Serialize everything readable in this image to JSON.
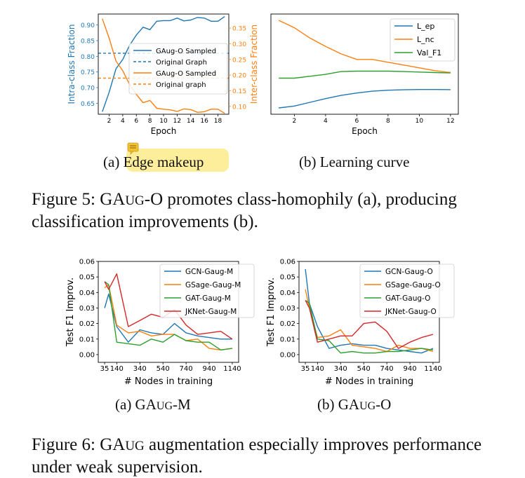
{
  "colors": {
    "blue": "#1f77b4",
    "orange": "#ff7f0e",
    "green": "#2ca02c",
    "red": "#d62728",
    "highlight": "#fdee9c",
    "note_icon": "#f2c230"
  },
  "figure5": {
    "caption": {
      "prefix": "Figure 5: GA",
      "smallcaps": "UG",
      "rest": "-O promotes class-homophily (a), producing classification improvements (b)."
    },
    "panel_a": {
      "subcaption": {
        "label": "(a) ",
        "text": "Edge makeup"
      },
      "chart_data": {
        "type": "line",
        "xlabel": "Epoch",
        "ylabel_left": "Intra-class Fraction",
        "ylabel_right": "Inter-class Fraction",
        "x_ticks": [
          "2",
          "4",
          "6",
          "8",
          "10",
          "12",
          "14",
          "16",
          "18"
        ],
        "y_left_ticks": [
          "0.65",
          "0.70",
          "0.75",
          "0.80",
          "0.85",
          "0.90"
        ],
        "y_right_ticks": [
          "0.10",
          "0.15",
          "0.20",
          "0.25",
          "0.30",
          "0.35"
        ],
        "xlim": [
          0.4,
          19.6
        ],
        "ylim_left": [
          0.615,
          0.935
        ],
        "ylim_right": [
          0.075,
          0.395
        ],
        "series": [
          {
            "name": "GAug-O Sampled",
            "axis": "left",
            "color": "#1f77b4",
            "x": [
              1,
              2,
              3,
              4,
              5,
              6,
              7,
              8,
              9,
              10,
              11,
              12,
              13,
              14,
              15,
              16,
              17,
              18,
              19
            ],
            "values": [
              0.623,
              0.685,
              0.76,
              0.79,
              0.835,
              0.868,
              0.893,
              0.885,
              0.912,
              0.914,
              0.914,
              0.922,
              0.913,
              0.916,
              0.924,
              0.922,
              0.912,
              0.912,
              0.927
            ]
          },
          {
            "name": "Original Graph",
            "axis": "left",
            "color": "#1f77b4",
            "dashed": true,
            "x": [
              0.4,
              19.6
            ],
            "values": [
              0.81,
              0.81
            ]
          },
          {
            "name": "GAug-O Sampled",
            "axis": "right",
            "color": "#ff7f0e",
            "x": [
              1,
              2,
              3,
              4,
              5,
              6,
              7,
              8,
              9,
              10,
              11,
              12,
              13,
              14,
              15,
              16,
              17,
              18,
              19
            ],
            "values": [
              0.38,
              0.318,
              0.245,
              0.214,
              0.17,
              0.138,
              0.112,
              0.119,
              0.094,
              0.091,
              0.089,
              0.084,
              0.092,
              0.09,
              0.081,
              0.083,
              0.091,
              0.091,
              0.078
            ]
          },
          {
            "name": "Original graph",
            "axis": "right",
            "color": "#ff7f0e",
            "dashed": true,
            "x": [
              0.4,
              19.6
            ],
            "values": [
              0.19,
              0.19
            ]
          }
        ],
        "legend": [
          "GAug-O Sampled",
          "Original Graph",
          "GAug-O Sampled",
          "Original graph"
        ]
      }
    },
    "panel_b": {
      "subcaption": {
        "label": "(b) Learning curve"
      },
      "chart_data": {
        "type": "line",
        "xlabel": "Epoch",
        "x_ticks": [
          "2",
          "4",
          "6",
          "8",
          "10",
          "12"
        ],
        "xlim": [
          0.5,
          12.5
        ],
        "ylim": [
          0,
          1
        ],
        "series": [
          {
            "name": "L_ep",
            "color": "#1f77b4",
            "x": [
              1,
              2,
              3,
              4,
              5,
              6,
              7,
              8,
              9,
              10,
              11,
              12
            ],
            "values": [
              0.03,
              0.05,
              0.09,
              0.13,
              0.165,
              0.19,
              0.21,
              0.22,
              0.225,
              0.228,
              0.228,
              0.226
            ]
          },
          {
            "name": "L_nc",
            "color": "#ff7f0e",
            "x": [
              1,
              2,
              3,
              4,
              5,
              6,
              7,
              8,
              9,
              10,
              11,
              12
            ],
            "values": [
              0.97,
              0.89,
              0.78,
              0.69,
              0.61,
              0.55,
              0.55,
              0.52,
              0.49,
              0.46,
              0.43,
              0.41
            ]
          },
          {
            "name": "Val_F1",
            "color": "#2ca02c",
            "x": [
              1,
              2,
              3,
              4,
              5,
              6,
              7,
              8,
              9,
              10,
              11,
              12
            ],
            "values": [
              0.35,
              0.35,
              0.37,
              0.39,
              0.42,
              0.425,
              0.425,
              0.425,
              0.42,
              0.415,
              0.41,
              0.405
            ]
          }
        ],
        "legend": [
          "L_ep",
          "L_nc",
          "Val_F1"
        ]
      }
    }
  },
  "figure6": {
    "caption": {
      "prefix": "Figure 6: GA",
      "smallcaps": "UG",
      "rest": " augmentation especially improves performance under weak supervision."
    },
    "panel_a": {
      "subcaption": {
        "label": "(a) GA",
        "smallcaps": "UG",
        "rest": "-M"
      },
      "chart_data": {
        "type": "line",
        "xlabel": "# Nodes in training",
        "ylabel": "Test F1 Improv.",
        "x_ticks": [
          "35",
          "140",
          "340",
          "540",
          "740",
          "940",
          "1140"
        ],
        "y_ticks": [
          "0.00",
          "0.01",
          "0.02",
          "0.03",
          "0.04",
          "0.05",
          "0.06"
        ],
        "xlim": [
          -20,
          1195
        ],
        "ylim": [
          -0.005,
          0.06
        ],
        "series": [
          {
            "name": "GCN-Gaug-M",
            "color": "#1f77b4",
            "x": [
              35,
              70,
              140,
              240,
              340,
              440,
              540,
              640,
              740,
              840,
              940,
              1040,
              1140
            ],
            "values": [
              0.03,
              0.039,
              0.018,
              0.008,
              0.016,
              0.014,
              0.013,
              0.02,
              0.014,
              0.012,
              0.011,
              0.01,
              0.01
            ]
          },
          {
            "name": "GSage-Gaug-M",
            "color": "#ff7f0e",
            "x": [
              35,
              70,
              140,
              240,
              340,
              440,
              540,
              640,
              740,
              840,
              940,
              1040,
              1140
            ],
            "values": [
              0.043,
              0.045,
              0.019,
              0.014,
              0.015,
              0.012,
              0.013,
              0.013,
              0.009,
              0.01,
              0.004,
              0.003,
              0.004
            ]
          },
          {
            "name": "GAT-Gaug-M",
            "color": "#2ca02c",
            "x": [
              35,
              70,
              140,
              240,
              340,
              440,
              540,
              640,
              740,
              840,
              940,
              1040,
              1140
            ],
            "values": [
              0.047,
              0.045,
              0.008,
              0.007,
              0.006,
              0.01,
              0.008,
              0.013,
              0.009,
              0.008,
              0.008,
              0.003,
              0.004
            ]
          },
          {
            "name": "JKNet-Gaug-M",
            "color": "#d62728",
            "x": [
              35,
              70,
              140,
              240,
              340,
              440,
              540,
              640,
              740,
              840,
              940,
              1040,
              1140
            ],
            "values": [
              0.047,
              0.042,
              0.052,
              0.018,
              0.022,
              0.026,
              0.024,
              0.029,
              0.019,
              0.013,
              0.014,
              0.015,
              0.01
            ]
          }
        ],
        "legend": [
          "GCN-Gaug-M",
          "GSage-Gaug-M",
          "GAT-Gaug-M",
          "JKNet-Gaug-M"
        ]
      }
    },
    "panel_b": {
      "subcaption": {
        "label": "(b) GA",
        "smallcaps": "UG",
        "rest": "-O"
      },
      "chart_data": {
        "type": "line",
        "xlabel": "# Nodes in training",
        "ylabel": "Test F1 Improv.",
        "x_ticks": [
          "35",
          "140",
          "340",
          "540",
          "740",
          "940",
          "1140"
        ],
        "y_ticks": [
          "0.00",
          "0.01",
          "0.02",
          "0.03",
          "0.04",
          "0.05",
          "0.06"
        ],
        "xlim": [
          -20,
          1195
        ],
        "ylim": [
          -0.005,
          0.06
        ],
        "series": [
          {
            "name": "GCN-Gaug-O",
            "color": "#1f77b4",
            "x": [
              35,
              70,
              140,
              240,
              340,
              440,
              540,
              640,
              740,
              840,
              940,
              1040,
              1140
            ],
            "values": [
              0.055,
              0.033,
              0.018,
              0.004,
              0.006,
              0.007,
              0.006,
              0.006,
              0.004,
              0.003,
              0.002,
              0.001,
              0.004
            ]
          },
          {
            "name": "GSage-Gaug-O",
            "color": "#ff7f0e",
            "x": [
              35,
              70,
              140,
              240,
              340,
              440,
              540,
              640,
              740,
              840,
              940,
              1040,
              1140
            ],
            "values": [
              0.042,
              0.03,
              0.011,
              0.012,
              0.016,
              0.006,
              0.005,
              0.004,
              0.002,
              0.006,
              0.004,
              0.004,
              0.002
            ]
          },
          {
            "name": "GAT-Gaug-O",
            "color": "#2ca02c",
            "x": [
              35,
              70,
              140,
              240,
              340,
              440,
              540,
              640,
              740,
              840,
              940,
              1040,
              1140
            ],
            "values": [
              0.035,
              0.033,
              0.01,
              0.009,
              0.001,
              0.002,
              0.001,
              0.001,
              0.002,
              0.002,
              0.003,
              0.004,
              0.003
            ]
          },
          {
            "name": "JKNet-Gaug-O",
            "color": "#d62728",
            "x": [
              35,
              70,
              140,
              240,
              340,
              440,
              540,
              640,
              740,
              840,
              940,
              1040,
              1140
            ],
            "values": [
              0.035,
              0.03,
              0.008,
              0.01,
              0.012,
              0.012,
              0.02,
              0.021,
              0.015,
              0.004,
              0.008,
              0.011,
              0.013
            ]
          }
        ],
        "legend": [
          "GCN-Gaug-O",
          "GSage-Gaug-O",
          "GAT-Gaug-O",
          "JKNet-Gaug-O"
        ]
      }
    }
  }
}
